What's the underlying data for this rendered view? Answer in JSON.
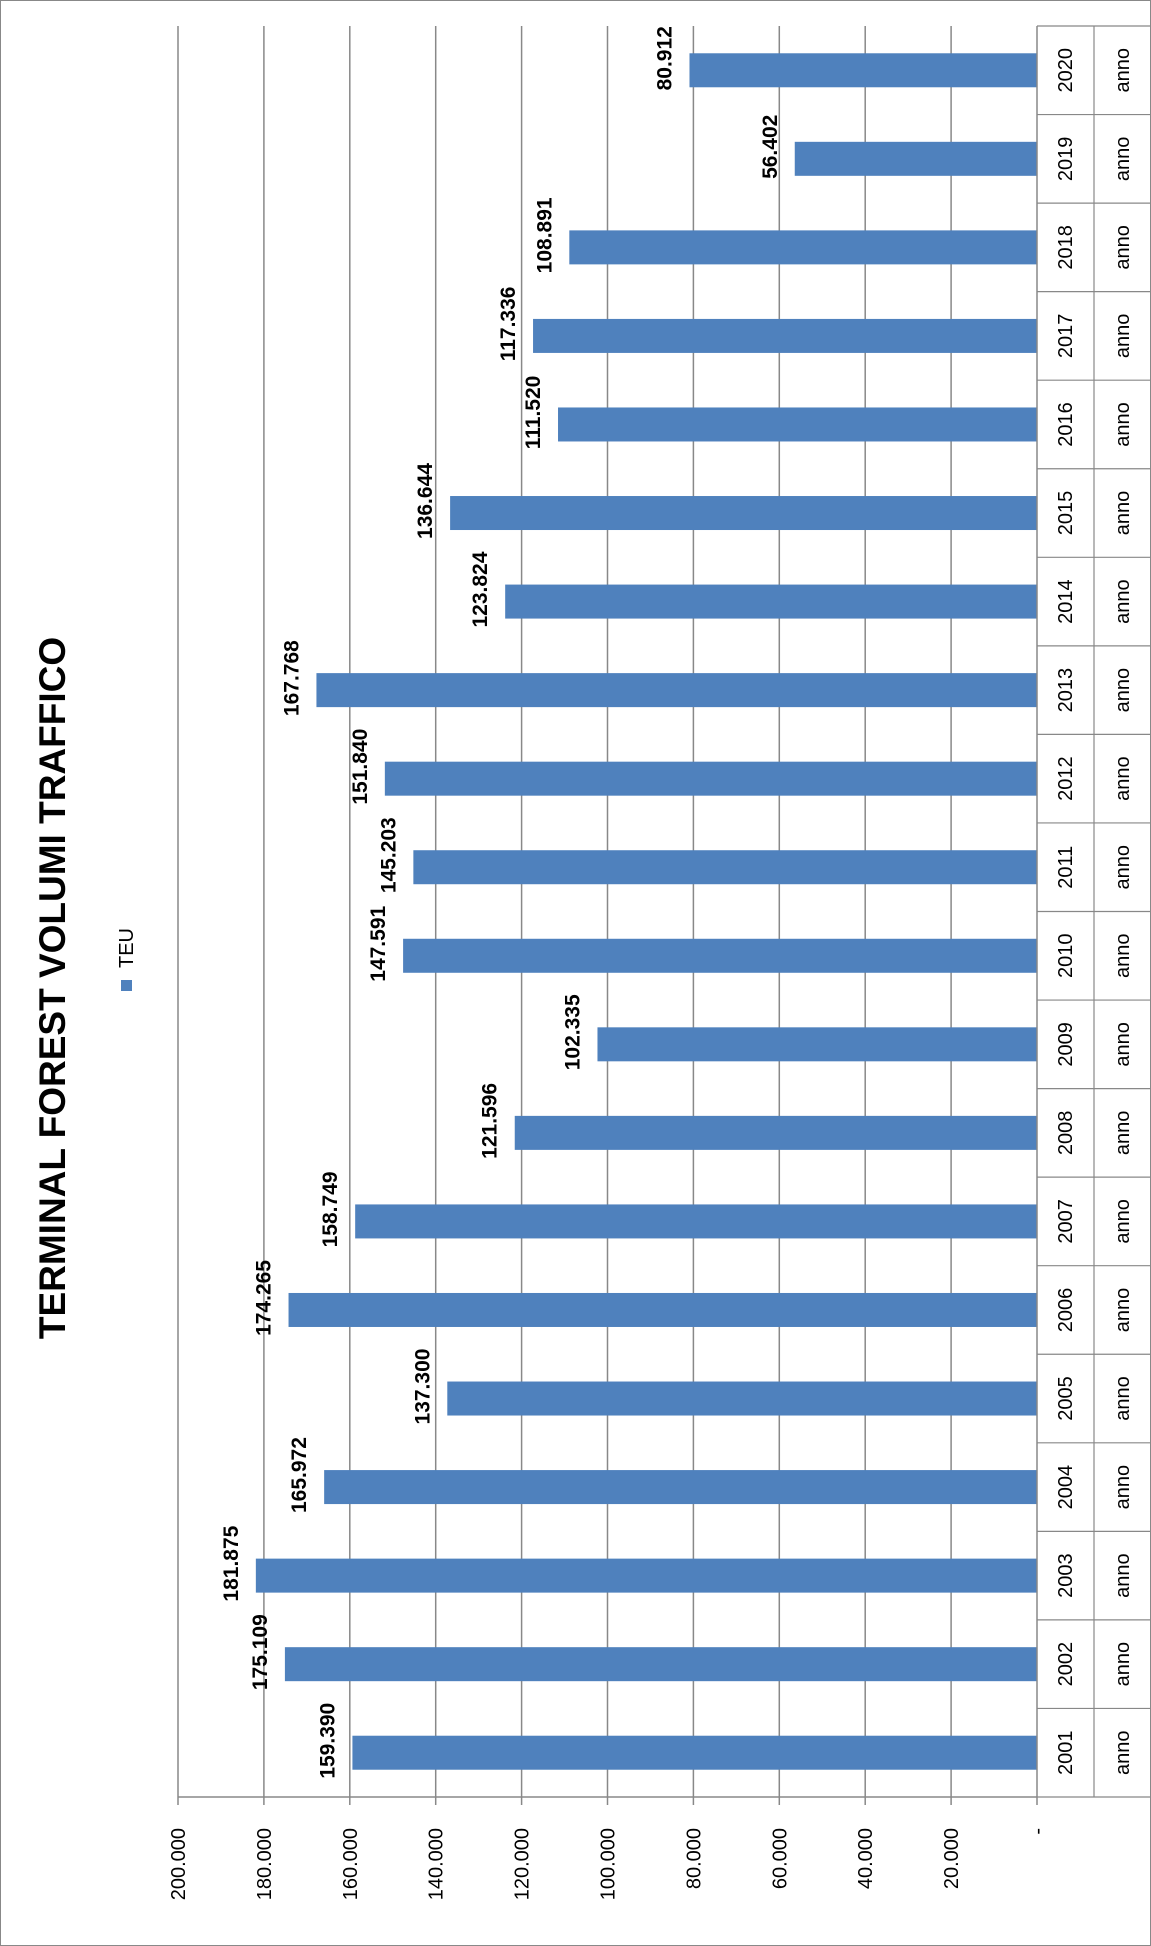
{
  "chart_data": {
    "type": "bar",
    "orientation": "vertical (image rotated 90° counter-clockwise)",
    "title": "TERMINAL FOREST VOLUMI TRAFFICO",
    "legend": {
      "position": "top",
      "entries": [
        "TEU"
      ]
    },
    "category_prefix": "anno",
    "categories": [
      "2001",
      "2002",
      "2003",
      "2004",
      "2005",
      "2006",
      "2007",
      "2008",
      "2009",
      "2010",
      "2011",
      "2012",
      "2013",
      "2014",
      "2015",
      "2016",
      "2017",
      "2018",
      "2019",
      "2020"
    ],
    "series": [
      {
        "name": "TEU",
        "color": "#4f81bd",
        "values": [
          159390,
          175109,
          181875,
          165972,
          137300,
          174265,
          158749,
          121596,
          102335,
          147591,
          145203,
          151840,
          167768,
          123824,
          136644,
          111520,
          117336,
          108891,
          56402,
          80912
        ],
        "labels": [
          "159.390",
          "175.109",
          "181.875",
          "165.972",
          "137.300",
          "174.265",
          "158.749",
          "121.596",
          "102.335",
          "147.591",
          "145.203",
          "151.840",
          "167.768",
          "123.824",
          "136.644",
          "111.520",
          "117.336",
          "108.891",
          "56.402",
          "80.912"
        ]
      }
    ],
    "ylim": [
      0,
      200000
    ],
    "yticks": [
      0,
      20000,
      40000,
      60000,
      80000,
      100000,
      120000,
      140000,
      160000,
      180000,
      200000
    ],
    "ytick_labels": [
      "-",
      "20.000",
      "40.000",
      "60.000",
      "80.000",
      "100.000",
      "120.000",
      "140.000",
      "160.000",
      "180.000",
      "200.000"
    ],
    "grid": true
  }
}
